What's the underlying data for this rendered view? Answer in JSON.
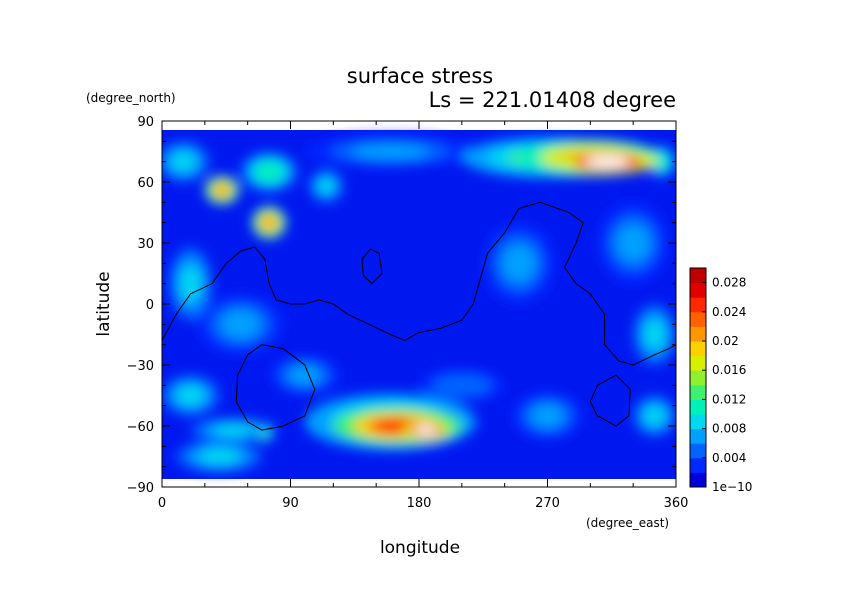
{
  "chart_data": {
    "type": "heatmap",
    "title": "surface stress",
    "subtitle": "Ls = 221.01408 degree",
    "xlabel": "longitude",
    "ylabel": "latitude",
    "x_unit": "(degree_east)",
    "y_unit": "(degree_north)",
    "xlim": [
      0,
      360
    ],
    "ylim": [
      -90,
      90
    ],
    "x_ticks": [
      "0",
      "90",
      "180",
      "270",
      "360"
    ],
    "y_ticks": [
      "90",
      "60",
      "30",
      "0",
      "−30",
      "−60",
      "−90"
    ],
    "colorbar": {
      "tick_labels": [
        "1e−10",
        "0.004",
        "0.008",
        "0.012",
        "0.016",
        "0.02",
        "0.024",
        "0.028"
      ],
      "range": [
        0,
        0.03
      ],
      "colors": [
        "#0000d8",
        "#0028ff",
        "#0064ff",
        "#00a0ff",
        "#00d8f0",
        "#00f0b8",
        "#40f070",
        "#90f030",
        "#d8f000",
        "#ffd000",
        "#ff9800",
        "#ff6000",
        "#ff2800",
        "#e00000",
        "#c00000"
      ]
    },
    "background_color": "#0018f0",
    "features": [
      {
        "lon": 312,
        "lat": 70,
        "value": 0.032,
        "rx": 35,
        "ry": 6
      },
      {
        "lon": 300,
        "lat": 72,
        "value": 0.022,
        "rx": 50,
        "ry": 9
      },
      {
        "lon": 270,
        "lat": 72,
        "value": 0.012,
        "rx": 60,
        "ry": 10
      },
      {
        "lon": 185,
        "lat": -62,
        "value": 0.032,
        "rx": 16,
        "ry": 5
      },
      {
        "lon": 165,
        "lat": -60,
        "value": 0.024,
        "rx": 45,
        "ry": 9
      },
      {
        "lon": 160,
        "lat": -58,
        "value": 0.012,
        "rx": 60,
        "ry": 14
      },
      {
        "lon": 42,
        "lat": 56,
        "value": 0.02,
        "rx": 12,
        "ry": 7
      },
      {
        "lon": 75,
        "lat": 40,
        "value": 0.02,
        "rx": 12,
        "ry": 8
      },
      {
        "lon": 75,
        "lat": 65,
        "value": 0.01,
        "rx": 20,
        "ry": 10
      },
      {
        "lon": 115,
        "lat": 58,
        "value": 0.009,
        "rx": 12,
        "ry": 8
      },
      {
        "lon": 15,
        "lat": 70,
        "value": 0.008,
        "rx": 18,
        "ry": 10
      },
      {
        "lon": 160,
        "lat": 75,
        "value": 0.006,
        "rx": 60,
        "ry": 8
      },
      {
        "lon": 20,
        "lat": 10,
        "value": 0.008,
        "rx": 15,
        "ry": 18
      },
      {
        "lon": 55,
        "lat": -10,
        "value": 0.007,
        "rx": 30,
        "ry": 15
      },
      {
        "lon": 20,
        "lat": -45,
        "value": 0.008,
        "rx": 20,
        "ry": 10
      },
      {
        "lon": 50,
        "lat": -62,
        "value": 0.008,
        "rx": 30,
        "ry": 6
      },
      {
        "lon": 72,
        "lat": -64,
        "value": 0.012,
        "rx": 6,
        "ry": 4
      },
      {
        "lon": 40,
        "lat": -75,
        "value": 0.008,
        "rx": 30,
        "ry": 8
      },
      {
        "lon": 250,
        "lat": 20,
        "value": 0.007,
        "rx": 25,
        "ry": 20
      },
      {
        "lon": 330,
        "lat": 30,
        "value": 0.007,
        "rx": 25,
        "ry": 20
      },
      {
        "lon": 345,
        "lat": -15,
        "value": 0.008,
        "rx": 15,
        "ry": 15
      },
      {
        "lon": 270,
        "lat": -55,
        "value": 0.007,
        "rx": 25,
        "ry": 12
      },
      {
        "lon": 345,
        "lat": -55,
        "value": 0.009,
        "rx": 15,
        "ry": 10
      },
      {
        "lon": 100,
        "lat": -35,
        "value": 0.006,
        "rx": 25,
        "ry": 10
      },
      {
        "lon": 210,
        "lat": -40,
        "value": 0.005,
        "rx": 30,
        "ry": 8
      },
      {
        "lon": 350,
        "lat": 70,
        "value": 0.01,
        "rx": 10,
        "ry": 8
      }
    ],
    "contours": [
      [
        [
          0,
          -18
        ],
        [
          10,
          -5
        ],
        [
          20,
          5
        ],
        [
          35,
          10
        ],
        [
          45,
          20
        ],
        [
          55,
          26
        ],
        [
          65,
          28
        ],
        [
          72,
          22
        ],
        [
          75,
          10
        ],
        [
          80,
          2
        ],
        [
          90,
          0
        ],
        [
          100,
          0
        ],
        [
          110,
          2
        ],
        [
          120,
          0
        ],
        [
          130,
          -5
        ],
        [
          145,
          -10
        ],
        [
          160,
          -15
        ],
        [
          170,
          -18
        ],
        [
          180,
          -14
        ],
        [
          195,
          -12
        ],
        [
          210,
          -8
        ],
        [
          218,
          0
        ],
        [
          222,
          10
        ],
        [
          228,
          25
        ],
        [
          240,
          35
        ],
        [
          250,
          47
        ],
        [
          265,
          50
        ],
        [
          285,
          45
        ],
        [
          295,
          40
        ],
        [
          290,
          30
        ],
        [
          282,
          18
        ],
        [
          290,
          10
        ],
        [
          300,
          5
        ],
        [
          310,
          -5
        ],
        [
          310,
          -20
        ],
        [
          320,
          -28
        ],
        [
          330,
          -30
        ],
        [
          345,
          -25
        ],
        [
          355,
          -22
        ],
        [
          360,
          -20
        ]
      ],
      [
        [
          140,
          22
        ],
        [
          146,
          27
        ],
        [
          152,
          25
        ],
        [
          154,
          15
        ],
        [
          147,
          10
        ],
        [
          141,
          14
        ],
        [
          140,
          22
        ]
      ],
      [
        [
          60,
          -25
        ],
        [
          70,
          -20
        ],
        [
          85,
          -22
        ],
        [
          100,
          -30
        ],
        [
          107,
          -42
        ],
        [
          100,
          -55
        ],
        [
          85,
          -60
        ],
        [
          70,
          -62
        ],
        [
          60,
          -58
        ],
        [
          52,
          -48
        ],
        [
          53,
          -35
        ],
        [
          60,
          -25
        ]
      ],
      [
        [
          305,
          -40
        ],
        [
          318,
          -35
        ],
        [
          328,
          -42
        ],
        [
          327,
          -55
        ],
        [
          318,
          -60
        ],
        [
          305,
          -55
        ],
        [
          300,
          -48
        ],
        [
          305,
          -40
        ]
      ]
    ]
  }
}
